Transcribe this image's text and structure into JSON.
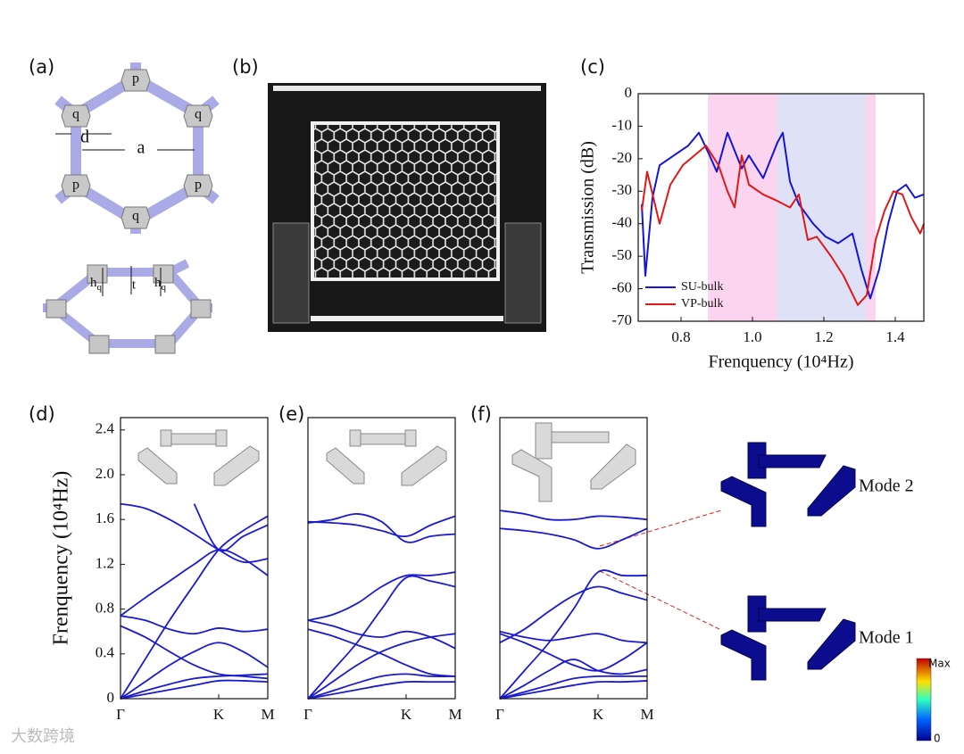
{
  "panel_a": {
    "label": "(a)",
    "sites": [
      "p",
      "q",
      "p",
      "q",
      "p",
      "q"
    ],
    "d": "d",
    "a": "a",
    "h_left": "h",
    "h_left_sub": "q",
    "t": "t",
    "h_right": "h",
    "h_right_sub": "q"
  },
  "panel_b": {
    "label": "(b)"
  },
  "chart_data": [
    {
      "type": "line",
      "panel": "(c)",
      "y_label": "Transmission (dB)",
      "x_label": "Frenquency (10⁴Hz)",
      "xlim": [
        0.68,
        1.48
      ],
      "ylim": [
        -70,
        0
      ],
      "xticks": [
        0.8,
        {
          "value": 1,
          "label": "1.0"
        },
        1.2,
        1.4
      ],
      "yticks": [
        0,
        -10,
        -20,
        -30,
        -40,
        -50,
        -60,
        -70
      ],
      "shaded_regions": [
        {
          "xlim": [
            0.875,
            1.07
          ],
          "color": "#fbd5ef"
        },
        {
          "xlim": [
            1.07,
            1.3175
          ],
          "color": "#dfe1f7"
        },
        {
          "xlim": [
            1.3175,
            1.345
          ],
          "color": "#fbd5ef"
        }
      ],
      "legend": "lower left",
      "series": [
        {
          "name": "SU-bulk",
          "color": "#1515d6",
          "x": [
            0.69,
            0.7,
            0.72,
            0.74,
            0.78,
            0.82,
            0.85,
            0.88,
            0.9,
            0.93,
            0.97,
            0.99,
            1.03,
            1.07,
            1.085,
            1.105,
            1.13,
            1.17,
            1.205,
            1.24,
            1.28,
            1.305,
            1.33,
            1.355,
            1.38,
            1.405,
            1.43,
            1.455,
            1.48
          ],
          "values": [
            -34,
            -56,
            -32,
            -22,
            -19,
            -16,
            -12,
            -19,
            -24,
            -12,
            -23,
            -19,
            -26,
            -15,
            -12,
            -27,
            -34,
            -40,
            -44,
            -46,
            -43,
            -54,
            -63,
            -54,
            -40,
            -30,
            -28,
            -32,
            -31
          ]
        },
        {
          "name": "VP-bulk",
          "color": "#e01818",
          "x": [
            0.69,
            0.705,
            0.74,
            0.77,
            0.805,
            0.87,
            0.905,
            0.93,
            0.95,
            0.97,
            0.99,
            1.03,
            1.07,
            1.105,
            1.13,
            1.155,
            1.18,
            1.22,
            1.255,
            1.295,
            1.32,
            1.345,
            1.37,
            1.395,
            1.42,
            1.445,
            1.47,
            1.48
          ],
          "values": [
            -36,
            -24,
            -40,
            -28,
            -22,
            -16,
            -22,
            -30,
            -35,
            -19,
            -28,
            -31,
            -33,
            -35,
            -31,
            -45,
            -44,
            -50,
            -56,
            -65,
            -62,
            -45,
            -36,
            -30,
            -31,
            -38,
            -43,
            -40
          ]
        }
      ]
    },
    {
      "type": "band",
      "panel": "(d)",
      "y_label": "Frenquency (10⁴Hz)",
      "color": "#1a1ad2",
      "x": [
        0,
        0.25,
        0.5,
        0.75,
        1,
        1.25,
        1.5
      ],
      "xlim": [
        0,
        1.5
      ],
      "ylim": [
        0,
        2.51
      ],
      "xticks": [
        {
          "value": 0,
          "label": "Γ"
        },
        {
          "value": 1,
          "label": "K"
        },
        {
          "value": 1.5,
          "label": "M"
        }
      ],
      "yticks": [
        0,
        0.4,
        0.8,
        1.2,
        1.6,
        {
          "value": 2,
          "label": "2.0"
        },
        2.4
      ],
      "series": [
        {
          "values": [
            0,
            0.04,
            0.08,
            0.12,
            0.16,
            0.16,
            0.15
          ]
        },
        {
          "values": [
            0,
            0.07,
            0.13,
            0.18,
            0.2,
            0.21,
            0.22
          ]
        },
        {
          "values": [
            0,
            0.15,
            0.3,
            0.42,
            0.5,
            0.42,
            0.28
          ]
        },
        {
          "values": [
            0.65,
            0.55,
            0.42,
            0.3,
            0.22,
            0.2,
            0.18
          ]
        },
        {
          "values": [
            0.74,
            0.7,
            0.62,
            0.58,
            0.63,
            0.6,
            0.62
          ]
        },
        {
          "values": [
            0,
            0.35,
            0.7,
            1.02,
            1.33,
            1.5,
            1.63
          ]
        },
        {
          "values": [
            0.74,
            0.9,
            1.05,
            1.2,
            1.33,
            1.25,
            1.1
          ]
        },
        {
          "values": [
            1.74,
            1.7,
            1.6,
            1.47,
            1.33,
            1.22,
            1.25
          ]
        },
        {
          "values": [
            null,
            null,
            null,
            1.74,
            1.33,
            1.45,
            1.55
          ]
        }
      ]
    },
    {
      "type": "band",
      "panel": "(e)",
      "color": "#1a1ad2",
      "x": [
        0,
        0.25,
        0.5,
        0.75,
        1,
        1.25,
        1.5
      ],
      "xlim": [
        0,
        1.5
      ],
      "ylim": [
        0,
        2.51
      ],
      "xticks": [
        {
          "value": 0,
          "label": "Γ"
        },
        {
          "value": 1,
          "label": "K"
        },
        {
          "value": 1.5,
          "label": "M"
        }
      ],
      "series": [
        {
          "values": [
            0,
            0.04,
            0.08,
            0.12,
            0.15,
            0.15,
            0.15
          ]
        },
        {
          "values": [
            0,
            0.07,
            0.14,
            0.2,
            0.22,
            0.2,
            0.2
          ]
        },
        {
          "values": [
            0,
            0.15,
            0.3,
            0.42,
            0.5,
            0.55,
            0.58
          ]
        },
        {
          "values": [
            0.62,
            0.56,
            0.48,
            0.4,
            0.3,
            0.22,
            0.2
          ]
        },
        {
          "values": [
            0.7,
            0.65,
            0.58,
            0.55,
            0.6,
            0.55,
            0.45
          ]
        },
        {
          "values": [
            0.7,
            0.75,
            0.85,
            1,
            1.1,
            1.1,
            1.13
          ]
        },
        {
          "values": [
            0,
            0.25,
            0.5,
            0.8,
            1.08,
            1.05,
            1
          ]
        },
        {
          "values": [
            1.57,
            1.6,
            1.65,
            1.58,
            1.4,
            1.45,
            1.47
          ]
        },
        {
          "values": [
            1.58,
            1.57,
            1.55,
            1.5,
            1.45,
            1.55,
            1.63
          ]
        }
      ]
    },
    {
      "type": "band",
      "panel": "(f)",
      "color": "#1a1ad2",
      "x": [
        0,
        0.25,
        0.5,
        0.75,
        1,
        1.25,
        1.5
      ],
      "xlim": [
        0,
        1.5
      ],
      "ylim": [
        0,
        2.51
      ],
      "xticks": [
        {
          "value": 0,
          "label": "Γ"
        },
        {
          "value": 1,
          "label": "K"
        },
        {
          "value": 1.5,
          "label": "M"
        }
      ],
      "series": [
        {
          "values": [
            0,
            0.04,
            0.08,
            0.12,
            0.15,
            0.15,
            0.16
          ]
        },
        {
          "values": [
            0,
            0.06,
            0.12,
            0.18,
            0.2,
            0.2,
            0.2
          ]
        },
        {
          "values": [
            0,
            0.12,
            0.25,
            0.35,
            0.25,
            0.22,
            0.26
          ]
        },
        {
          "values": [
            0.58,
            0.5,
            0.4,
            0.3,
            0.25,
            0.35,
            0.5
          ]
        },
        {
          "values": [
            0.6,
            0.55,
            0.52,
            0.55,
            0.58,
            0.52,
            0.5
          ]
        },
        {
          "values": [
            0.5,
            0.62,
            0.78,
            0.92,
            1,
            0.94,
            0.88
          ]
        },
        {
          "values": [
            0,
            0.25,
            0.5,
            0.8,
            1.13,
            1.1,
            1.1
          ]
        },
        {
          "values": [
            1.52,
            1.5,
            1.47,
            1.42,
            1.34,
            1.42,
            1.52
          ]
        },
        {
          "values": [
            1.68,
            1.65,
            1.6,
            1.6,
            1.63,
            1.62,
            1.6
          ]
        }
      ]
    }
  ],
  "modes": [
    "Mode 2",
    "Mode 1"
  ],
  "colorbar": {
    "max": "Max",
    "min": 0
  },
  "watermark": "大数跨境"
}
